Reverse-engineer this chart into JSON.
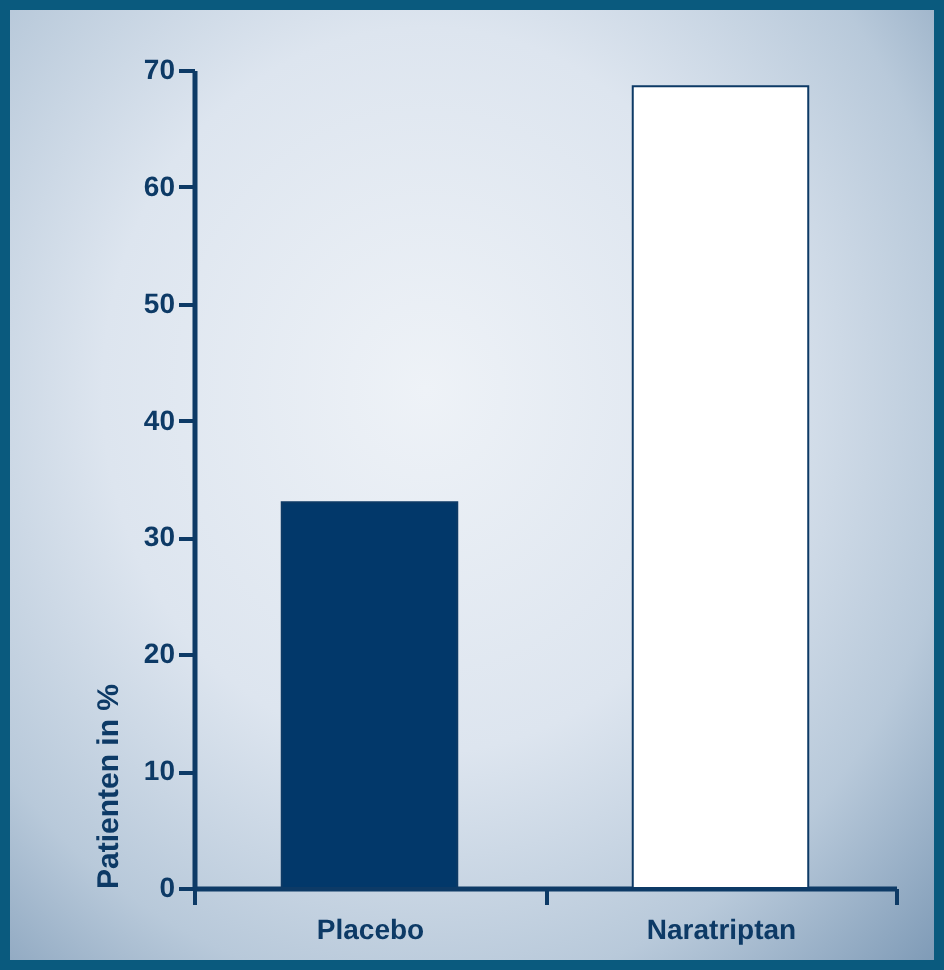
{
  "chart_data": {
    "type": "bar",
    "ylabel": "Patienten in %",
    "categories": [
      "Placebo",
      "Naratriptan"
    ],
    "values": [
      33,
      68.6
    ],
    "colors": [
      "#02386a",
      "#ffffff"
    ],
    "ylim": [
      0,
      70
    ],
    "yticks": [
      0,
      10,
      20,
      30,
      40,
      50,
      60,
      70
    ],
    "grid": false,
    "legend": false
  }
}
